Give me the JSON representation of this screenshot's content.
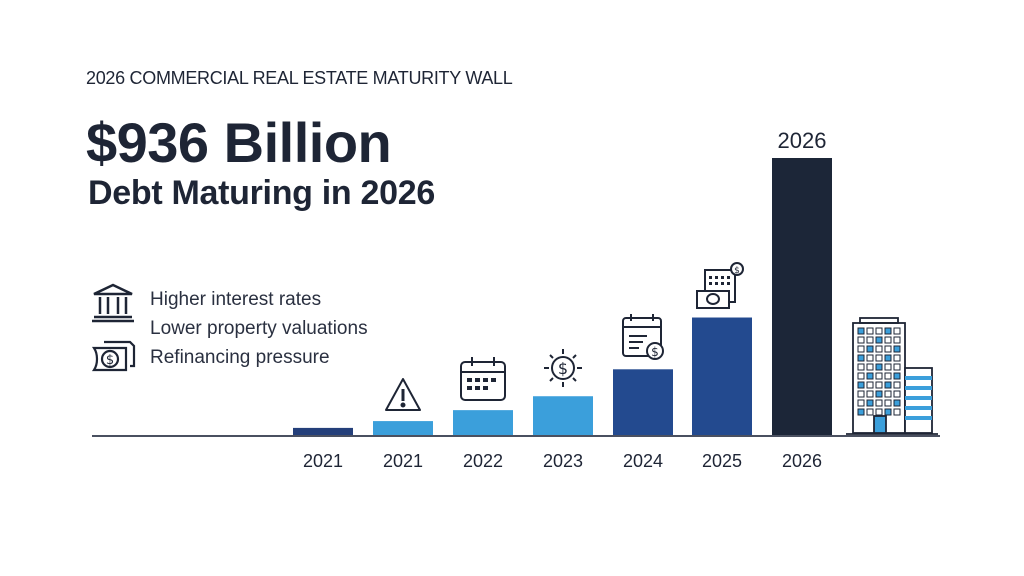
{
  "header": {
    "kicker": "2026 COMMERCIAL REAL ESTATE MATURITY WALL",
    "headline": "$936 Billion",
    "subheadline": "Debt Maturing in 2026"
  },
  "reasons": [
    {
      "icon": "bank-icon",
      "label": "Higher interest rates"
    },
    {
      "icon": "",
      "label": "Lower property valuations"
    },
    {
      "icon": "money-icon",
      "label": "Refinancing pressure"
    }
  ],
  "chart_data": {
    "type": "bar",
    "title": "",
    "xlabel": "",
    "ylabel": "",
    "categories": [
      "2021",
      "2021",
      "2022",
      "2023",
      "2024",
      "2025",
      "2026"
    ],
    "values": [
      24,
      47,
      84,
      131,
      222,
      397,
      936
    ],
    "bar_colors": [
      "#243f7a",
      "#3b9fdb",
      "#3b9fdb",
      "#3b9fdb",
      "#234a8f",
      "#234a8f",
      "#1c2638"
    ],
    "bar_icons": [
      "",
      "warning-icon",
      "calendar-icon",
      "dollar-sun-icon",
      "calendar-dollar-icon",
      "cash-calculator-icon",
      ""
    ],
    "data_labels": [
      "",
      "",
      "",
      "",
      "",
      "",
      "2026"
    ],
    "ylim": [
      0,
      936
    ],
    "grid": false,
    "legend": "none"
  }
}
